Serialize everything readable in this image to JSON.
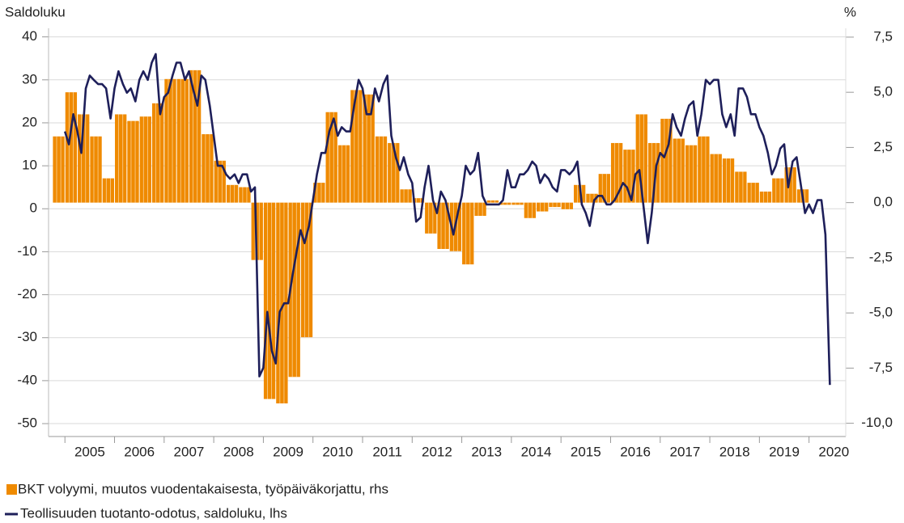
{
  "chart_data": {
    "type": "bar_line",
    "y_label": "Saldoluku",
    "y2_label": "%",
    "xlim": [
      2004.67,
      2020.74
    ],
    "xticks": [
      2005,
      2006,
      2007,
      2008,
      2009,
      2010,
      2011,
      2012,
      2013,
      2014,
      2015,
      2016,
      2017,
      2018,
      2019,
      2020
    ],
    "ylim": [
      -53,
      42
    ],
    "yticks": [
      40,
      30,
      20,
      10,
      0,
      -10,
      -20,
      -30,
      -40,
      -50
    ],
    "y2lim": [
      -10.6,
      7.9
    ],
    "y2ticks": [
      {
        "value": 7.5,
        "label": "7,5"
      },
      {
        "value": 5,
        "label": "5,0"
      },
      {
        "value": 2.5,
        "label": "2,5"
      },
      {
        "value": 0,
        "label": "0,0"
      },
      {
        "value": -2.5,
        "label": "-2,5"
      },
      {
        "value": -5,
        "label": "-5,0"
      },
      {
        "value": -7.5,
        "label": "-7,5"
      },
      {
        "value": -10,
        "label": "-10,0"
      }
    ],
    "grid": true,
    "series": [
      {
        "name": "BKT volyymi, muutos vuodentakaisesta, työpäiväkorjattu, rhs",
        "type": "bar",
        "axis": "y2",
        "color": "#ef8a00",
        "x": [
          2004.75,
          2005,
          2005.25,
          2005.5,
          2005.75,
          2006,
          2006.25,
          2006.5,
          2006.75,
          2007,
          2007.25,
          2007.5,
          2007.75,
          2008,
          2008.25,
          2008.5,
          2008.75,
          2009,
          2009.25,
          2009.5,
          2009.75,
          2010,
          2010.25,
          2010.5,
          2010.75,
          2011,
          2011.25,
          2011.5,
          2011.75,
          2012,
          2012.25,
          2012.5,
          2012.75,
          2013,
          2013.25,
          2013.5,
          2013.75,
          2014,
          2014.25,
          2014.5,
          2014.75,
          2015,
          2015.25,
          2015.5,
          2015.75,
          2016,
          2016.25,
          2016.5,
          2016.75,
          2017,
          2017.25,
          2017.5,
          2017.75,
          2018,
          2018.25,
          2018.5,
          2018.75,
          2019,
          2019.25,
          2019.5,
          2019.75
        ],
        "values": [
          3.0,
          5.0,
          4.0,
          3.0,
          1.1,
          4.0,
          3.7,
          3.9,
          4.5,
          5.6,
          5.6,
          6.0,
          3.1,
          1.9,
          0.8,
          0.7,
          -2.6,
          -8.9,
          -9.1,
          -7.9,
          -6.1,
          0.9,
          4.1,
          2.6,
          5.1,
          4.9,
          3.0,
          2.7,
          0.6,
          0.2,
          -1.4,
          -2.1,
          -2.2,
          -2.8,
          -0.6,
          0.1,
          -0.1,
          -0.1,
          -0.7,
          -0.4,
          -0.2,
          -0.3,
          0.8,
          0.4,
          1.3,
          2.7,
          2.4,
          4.0,
          2.7,
          3.8,
          2.9,
          2.6,
          3.0,
          2.2,
          2.0,
          1.4,
          0.9,
          0.5,
          1.1,
          1.6,
          0.6
        ]
      },
      {
        "name": "Teollisuuden tuotanto-odotus, saldoluku, lhs",
        "type": "line",
        "axis": "y",
        "color": "#1e1f5a",
        "x": [
          2005,
          2005.08,
          2005.17,
          2005.25,
          2005.33,
          2005.42,
          2005.5,
          2005.58,
          2005.67,
          2005.75,
          2005.83,
          2005.92,
          2006,
          2006.08,
          2006.17,
          2006.25,
          2006.33,
          2006.42,
          2006.5,
          2006.58,
          2006.67,
          2006.75,
          2006.83,
          2006.92,
          2007,
          2007.08,
          2007.17,
          2007.25,
          2007.33,
          2007.42,
          2007.5,
          2007.58,
          2007.67,
          2007.75,
          2007.83,
          2007.92,
          2008,
          2008.08,
          2008.17,
          2008.25,
          2008.33,
          2008.42,
          2008.5,
          2008.58,
          2008.67,
          2008.75,
          2008.83,
          2008.92,
          2009,
          2009.08,
          2009.17,
          2009.25,
          2009.33,
          2009.42,
          2009.5,
          2009.58,
          2009.67,
          2009.75,
          2009.83,
          2009.92,
          2010,
          2010.08,
          2010.17,
          2010.25,
          2010.33,
          2010.42,
          2010.5,
          2010.58,
          2010.67,
          2010.75,
          2010.83,
          2010.92,
          2011,
          2011.08,
          2011.17,
          2011.25,
          2011.33,
          2011.42,
          2011.5,
          2011.58,
          2011.67,
          2011.75,
          2011.83,
          2011.92,
          2012,
          2012.08,
          2012.17,
          2012.25,
          2012.33,
          2012.42,
          2012.5,
          2012.58,
          2012.67,
          2012.75,
          2012.83,
          2012.92,
          2013,
          2013.08,
          2013.17,
          2013.25,
          2013.33,
          2013.42,
          2013.5,
          2013.58,
          2013.67,
          2013.75,
          2013.83,
          2013.92,
          2014,
          2014.08,
          2014.17,
          2014.25,
          2014.33,
          2014.42,
          2014.5,
          2014.58,
          2014.67,
          2014.75,
          2014.83,
          2014.92,
          2015,
          2015.08,
          2015.17,
          2015.25,
          2015.33,
          2015.42,
          2015.5,
          2015.58,
          2015.67,
          2015.75,
          2015.83,
          2015.92,
          2016,
          2016.08,
          2016.17,
          2016.25,
          2016.33,
          2016.42,
          2016.5,
          2016.58,
          2016.67,
          2016.75,
          2016.83,
          2016.92,
          2017,
          2017.08,
          2017.17,
          2017.25,
          2017.33,
          2017.42,
          2017.5,
          2017.58,
          2017.67,
          2017.75,
          2017.83,
          2017.92,
          2018,
          2018.08,
          2018.17,
          2018.25,
          2018.33,
          2018.42,
          2018.5,
          2018.58,
          2018.67,
          2018.75,
          2018.83,
          2018.92,
          2019,
          2019.08,
          2019.17,
          2019.25,
          2019.33,
          2019.42,
          2019.5,
          2019.58,
          2019.67,
          2019.75,
          2019.83,
          2019.92,
          2020,
          2020.08,
          2020.17,
          2020.25,
          2020.33,
          2020.42
        ],
        "values": [
          18,
          15,
          22,
          18,
          13,
          28,
          31,
          30,
          29,
          29,
          28,
          21,
          28,
          32,
          29,
          27,
          28,
          25,
          30,
          32,
          30,
          34,
          36,
          22,
          26,
          27,
          31,
          34,
          34,
          30,
          32,
          28,
          24,
          31,
          30,
          24,
          17,
          10,
          10,
          8,
          7,
          8,
          6,
          8,
          8,
          4,
          5,
          -39,
          -37,
          -24,
          -33,
          -36,
          -24,
          -22,
          -22,
          -16,
          -10,
          -5,
          -8,
          -4,
          2,
          8,
          13,
          13,
          18,
          21,
          17,
          19,
          18,
          18,
          24,
          30,
          28,
          22,
          22,
          28,
          25,
          29,
          31,
          17,
          12,
          9,
          12,
          8,
          6,
          -3,
          -2,
          5,
          10,
          2,
          -1,
          4,
          2,
          -2,
          -6,
          -1,
          3,
          10,
          8,
          9,
          13,
          3,
          1,
          1,
          1,
          1,
          2,
          9,
          5,
          5,
          8,
          8,
          9,
          11,
          10,
          6,
          8,
          7,
          5,
          4,
          9,
          9,
          8,
          9,
          11,
          1,
          -1,
          -4,
          2,
          3,
          3,
          1,
          1,
          2,
          4,
          6,
          5,
          2,
          8,
          9,
          0,
          -8,
          -1,
          10,
          13,
          12,
          15,
          22,
          19,
          17,
          21,
          24,
          25,
          17,
          22,
          30,
          29,
          30,
          30,
          22,
          19,
          22,
          17,
          28,
          28,
          26,
          22,
          22,
          19,
          17,
          13,
          8,
          10,
          14,
          15,
          5,
          11,
          12,
          6,
          -1,
          1,
          -1,
          2,
          2,
          -6,
          -41
        ]
      }
    ]
  }
}
